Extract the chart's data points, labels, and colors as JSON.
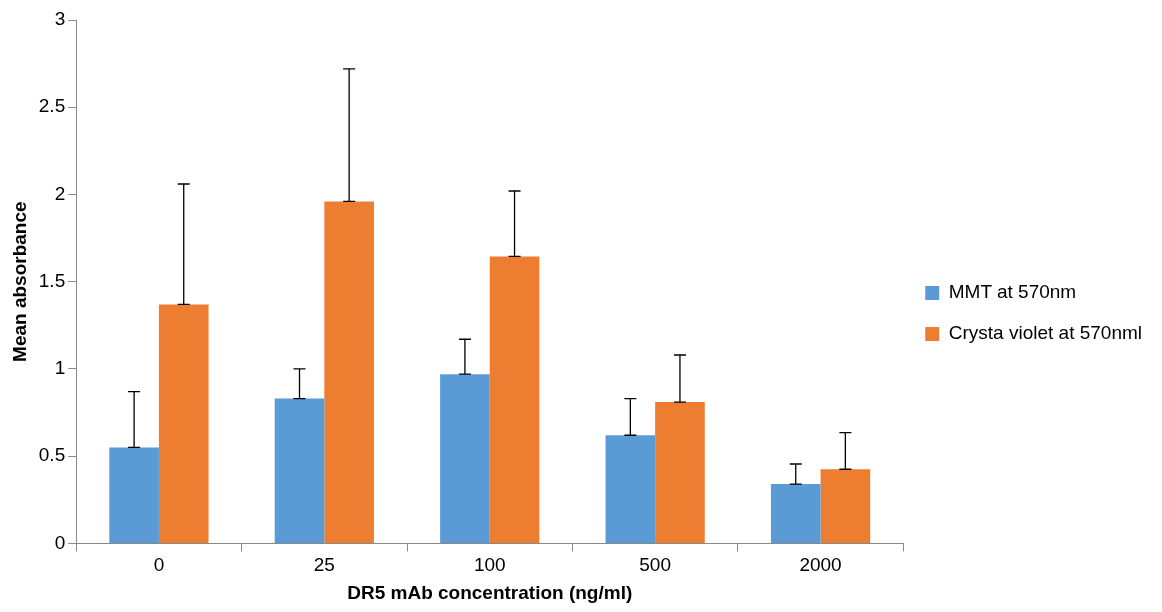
{
  "chart_data": {
    "type": "bar",
    "xlabel": "DR5 mAb concentration (ng/ml)",
    "ylabel": "Mean absorbance",
    "categories": [
      "0",
      "25",
      "100",
      "500",
      "2000"
    ],
    "series": [
      {
        "name": "MMT at 570nm",
        "color": "#5b9bd5",
        "values": [
          0.55,
          0.83,
          0.97,
          0.62,
          0.34
        ],
        "errors": [
          [
            0.55,
            0.87
          ],
          [
            0.83,
            1.0
          ],
          [
            0.97,
            1.17
          ],
          [
            0.62,
            0.83
          ],
          [
            0.34,
            0.455
          ]
        ]
      },
      {
        "name": "Crysta violet at 570nml",
        "color": "#ed7d31",
        "values": [
          1.37,
          1.96,
          1.645,
          0.81,
          0.425
        ],
        "errors": [
          [
            1.37,
            2.06
          ],
          [
            1.96,
            2.72
          ],
          [
            1.645,
            2.02
          ],
          [
            0.81,
            1.08
          ],
          [
            0.425,
            0.635
          ]
        ]
      }
    ],
    "ylim": [
      0,
      3
    ],
    "yticks": [
      0,
      0.5,
      1,
      1.5,
      2,
      2.5,
      3
    ],
    "grid": false,
    "legend": "right"
  }
}
